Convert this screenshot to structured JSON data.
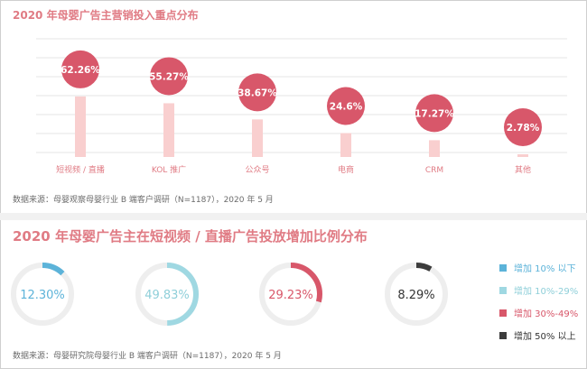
{
  "top": {
    "title": "2020 年母婴广告主营销投入重点分布",
    "source": "数据来源：母婴观察母婴行业 B 端客户调研（N=1187），2020 年 5 月"
  },
  "bottom": {
    "title": "2020 年母婴广告主在短视频 / 直播广告投放增加比例分布",
    "source": "数据来源：母婴研究院母婴行业 B 端客户调研（N=1187），2020 年 5 月"
  },
  "colors": {
    "pink_title": "#e07b84",
    "bar": "#f9cfcf",
    "bubble": "#d8576a",
    "grid": "#e6e6e6",
    "axis_label": "#e07b84"
  },
  "chart_data": [
    {
      "type": "bar",
      "title": "2020 年母婴广告主营销投入重点分布",
      "categories": [
        "短视频 / 直播",
        "KOL 推广",
        "公众号",
        "电商",
        "CRM",
        "其他"
      ],
      "values": [
        62.26,
        55.27,
        38.67,
        24.6,
        17.27,
        2.78
      ],
      "value_labels": [
        "62.26%",
        "55.27%",
        "38.67%",
        "24.6%",
        "17.27%",
        "2.78%"
      ],
      "ylim": [
        0,
        80
      ],
      "grid": true,
      "xlabel": "",
      "ylabel": ""
    },
    {
      "type": "pie",
      "title": "2020 年母婴广告主在短视频 / 直播广告投放增加比例分布",
      "categories": [
        "增加 10% 以下",
        "增加 10%-29%",
        "增加 30%-49%",
        "增加 50% 以上"
      ],
      "values": [
        12.3,
        49.83,
        29.23,
        8.29
      ],
      "value_labels": [
        "12.30%",
        "49.83%",
        "29.23%",
        "8.29%"
      ],
      "colors": [
        "#5cb3d9",
        "#9fd8e2",
        "#d8576a",
        "#3c3c3c"
      ],
      "text_colors": [
        "#5cb3d9",
        "#8fcfd9",
        "#d8576a",
        "#333333"
      ],
      "legend_position": "right"
    }
  ]
}
